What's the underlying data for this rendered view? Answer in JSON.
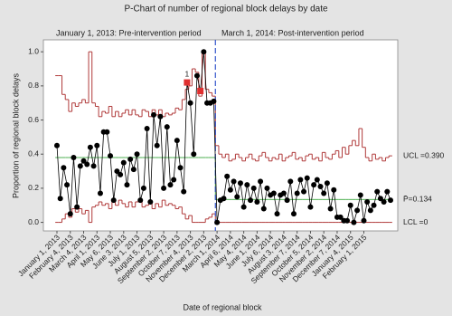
{
  "chart_data": {
    "type": "p-chart",
    "title": "P-Chart of number of regional block delays by date",
    "x_label": "Date of regional block",
    "y_label": "Proportion of regional block delays",
    "annotations": {
      "pre_period": "January 1, 2013: Pre-intervention period",
      "post_period": "March 1, 2014: Post-intervention period",
      "ucl_label": "UCL =0.390",
      "center_label": "P̄=0.134",
      "lcl_label": "LCL =0",
      "flag_label": "1"
    },
    "categories": [
      "January 1, 2013",
      null,
      null,
      null,
      "February 4, 2013",
      null,
      null,
      null,
      "March 4, 2013",
      null,
      null,
      null,
      "April 1, 2013",
      null,
      null,
      null,
      "May 6, 2013",
      null,
      null,
      null,
      "June 3, 2013",
      null,
      null,
      null,
      "July 1, 2013",
      null,
      null,
      null,
      "August 5, 2013",
      null,
      null,
      null,
      "September 2, 2013",
      null,
      null,
      null,
      "October 7, 2013",
      null,
      null,
      null,
      "November 4, 2013",
      null,
      null,
      null,
      "December 2, 2013",
      null,
      null,
      null,
      "March 1, 2014",
      null,
      null,
      null,
      "April 6, 2014",
      null,
      null,
      null,
      "May 4, 2014",
      null,
      null,
      null,
      "June 1, 2014",
      null,
      null,
      null,
      "July 6, 2014",
      null,
      null,
      null,
      "August 3, 2014",
      null,
      null,
      null,
      "September 7, 2014",
      null,
      null,
      null,
      "October 5, 2014",
      null,
      null,
      null,
      "November 2, 2014",
      null,
      null,
      null,
      "December 7, 2014",
      null,
      null,
      null,
      "January 4, 2015",
      null,
      null,
      null,
      "February 1, 2015",
      null,
      null,
      null,
      null,
      null,
      null,
      null,
      null
    ],
    "series": [
      {
        "name": "Proportion",
        "color": "#000000",
        "values": [
          0.45,
          0.14,
          0.32,
          0.22,
          0.05,
          0.38,
          0.09,
          0.33,
          0.36,
          0.34,
          0.44,
          0.33,
          0.45,
          0.17,
          0.53,
          0.53,
          0.39,
          0.13,
          0.3,
          0.28,
          0.35,
          0.22,
          0.37,
          0.31,
          0.4,
          0.13,
          0.2,
          0.55,
          0.12,
          0.63,
          0.45,
          0.62,
          0.2,
          0.56,
          0.22,
          0.25,
          0.48,
          0.32,
          0.18,
          0.82,
          0.7,
          0.4,
          0.86,
          0.77,
          1.0,
          0.7,
          0.7,
          0.71,
          0.0,
          0.13,
          0.14,
          0.27,
          0.19,
          0.24,
          0.15,
          0.23,
          0.09,
          0.22,
          0.13,
          0.2,
          0.12,
          0.24,
          0.08,
          0.2,
          0.16,
          0.17,
          0.05,
          0.16,
          0.17,
          0.13,
          0.24,
          0.05,
          0.17,
          0.25,
          0.18,
          0.26,
          0.09,
          0.22,
          0.25,
          0.21,
          0.17,
          0.23,
          0.08,
          0.19,
          0.03,
          0.03,
          0.01,
          0.01,
          0.1,
          0.0,
          0.07,
          0.16,
          0.01,
          0.12,
          0.07,
          0.1,
          0.18,
          0.14,
          0.12,
          0.18,
          0.13
        ]
      },
      {
        "name": "UCL",
        "color": "#b03a3a",
        "values": [
          0.86,
          0.86,
          0.75,
          0.72,
          0.65,
          0.7,
          0.68,
          0.7,
          0.72,
          0.7,
          1.0,
          0.7,
          0.68,
          0.62,
          0.65,
          0.64,
          0.68,
          0.62,
          0.65,
          0.62,
          0.64,
          0.66,
          0.63,
          0.66,
          0.63,
          0.62,
          0.66,
          0.65,
          0.62,
          0.66,
          0.63,
          0.66,
          0.62,
          0.64,
          0.63,
          0.64,
          0.67,
          0.66,
          0.72,
          0.78,
          0.8,
          0.9,
          0.88,
          0.74,
          1.0,
          0.78,
          0.76,
          0.74,
          0.45,
          0.4,
          0.38,
          0.4,
          0.36,
          0.37,
          0.4,
          0.38,
          0.36,
          0.38,
          0.4,
          0.37,
          0.36,
          0.39,
          0.41,
          0.38,
          0.36,
          0.38,
          0.37,
          0.4,
          0.36,
          0.38,
          0.39,
          0.41,
          0.37,
          0.38,
          0.36,
          0.39,
          0.4,
          0.37,
          0.38,
          0.36,
          0.41,
          0.38,
          0.37,
          0.4,
          0.42,
          0.38,
          0.44,
          0.4,
          0.45,
          0.48,
          0.45,
          0.55,
          0.44,
          0.38,
          0.36,
          0.4,
          0.37,
          0.38,
          0.36,
          0.38,
          0.39
        ]
      },
      {
        "name": "LCL",
        "color": "#b03a3a",
        "values": [
          0.0,
          0.0,
          0.02,
          0.05,
          0.03,
          0.08,
          0.06,
          0.08,
          0.05,
          0.07,
          0.0,
          0.09,
          0.1,
          0.12,
          0.1,
          0.11,
          0.08,
          0.12,
          0.1,
          0.13,
          0.11,
          0.09,
          0.12,
          0.09,
          0.12,
          0.13,
          0.09,
          0.1,
          0.12,
          0.08,
          0.11,
          0.09,
          0.13,
          0.1,
          0.11,
          0.1,
          0.08,
          0.09,
          0.05,
          0.02,
          0.04,
          0.0,
          0.0,
          0.0,
          0.0,
          0.02,
          0.03,
          0.05,
          0,
          0,
          0,
          0,
          0,
          0,
          0,
          0,
          0,
          0,
          0,
          0,
          0,
          0,
          0,
          0,
          0,
          0,
          0,
          0,
          0,
          0,
          0,
          0,
          0,
          0,
          0,
          0,
          0,
          0,
          0,
          0,
          0,
          0,
          0,
          0,
          0,
          0,
          0,
          0,
          0,
          0,
          0,
          0,
          0,
          0,
          0,
          0,
          0,
          0,
          0,
          0,
          0
        ]
      },
      {
        "name": "Center",
        "color": "#4caf50",
        "values": [
          0.38,
          0.38,
          0.38,
          0.38,
          0.38,
          0.38,
          0.38,
          0.38,
          0.38,
          0.38,
          0.38,
          0.38,
          0.38,
          0.38,
          0.38,
          0.38,
          0.38,
          0.38,
          0.38,
          0.38,
          0.38,
          0.38,
          0.38,
          0.38,
          0.38,
          0.38,
          0.38,
          0.38,
          0.38,
          0.38,
          0.38,
          0.38,
          0.38,
          0.38,
          0.38,
          0.38,
          0.38,
          0.38,
          0.38,
          0.38,
          0.38,
          0.38,
          0.38,
          0.38,
          0.38,
          0.38,
          0.38,
          0.38,
          0.134,
          0.134,
          0.134,
          0.134,
          0.134,
          0.134,
          0.134,
          0.134,
          0.134,
          0.134,
          0.134,
          0.134,
          0.134,
          0.134,
          0.134,
          0.134,
          0.134,
          0.134,
          0.134,
          0.134,
          0.134,
          0.134,
          0.134,
          0.134,
          0.134,
          0.134,
          0.134,
          0.134,
          0.134,
          0.134,
          0.134,
          0.134,
          0.134,
          0.134,
          0.134,
          0.134,
          0.134,
          0.134,
          0.134,
          0.134,
          0.134,
          0.134,
          0.134,
          0.134,
          0.134,
          0.134,
          0.134,
          0.134,
          0.134,
          0.134,
          0.134,
          0.134,
          0.134
        ]
      }
    ],
    "flagged": {
      "color": "#e03030",
      "x": [
        39,
        43
      ],
      "values": [
        0.82,
        0.77
      ]
    },
    "divider_color": "#3355cc",
    "ylim": [
      -0.05,
      1.07
    ],
    "yticks": [
      {
        "value": 0,
        "label": "0.0"
      },
      0.2,
      0.4,
      0.6,
      0.8,
      {
        "value": 1,
        "label": "1.0"
      }
    ]
  }
}
